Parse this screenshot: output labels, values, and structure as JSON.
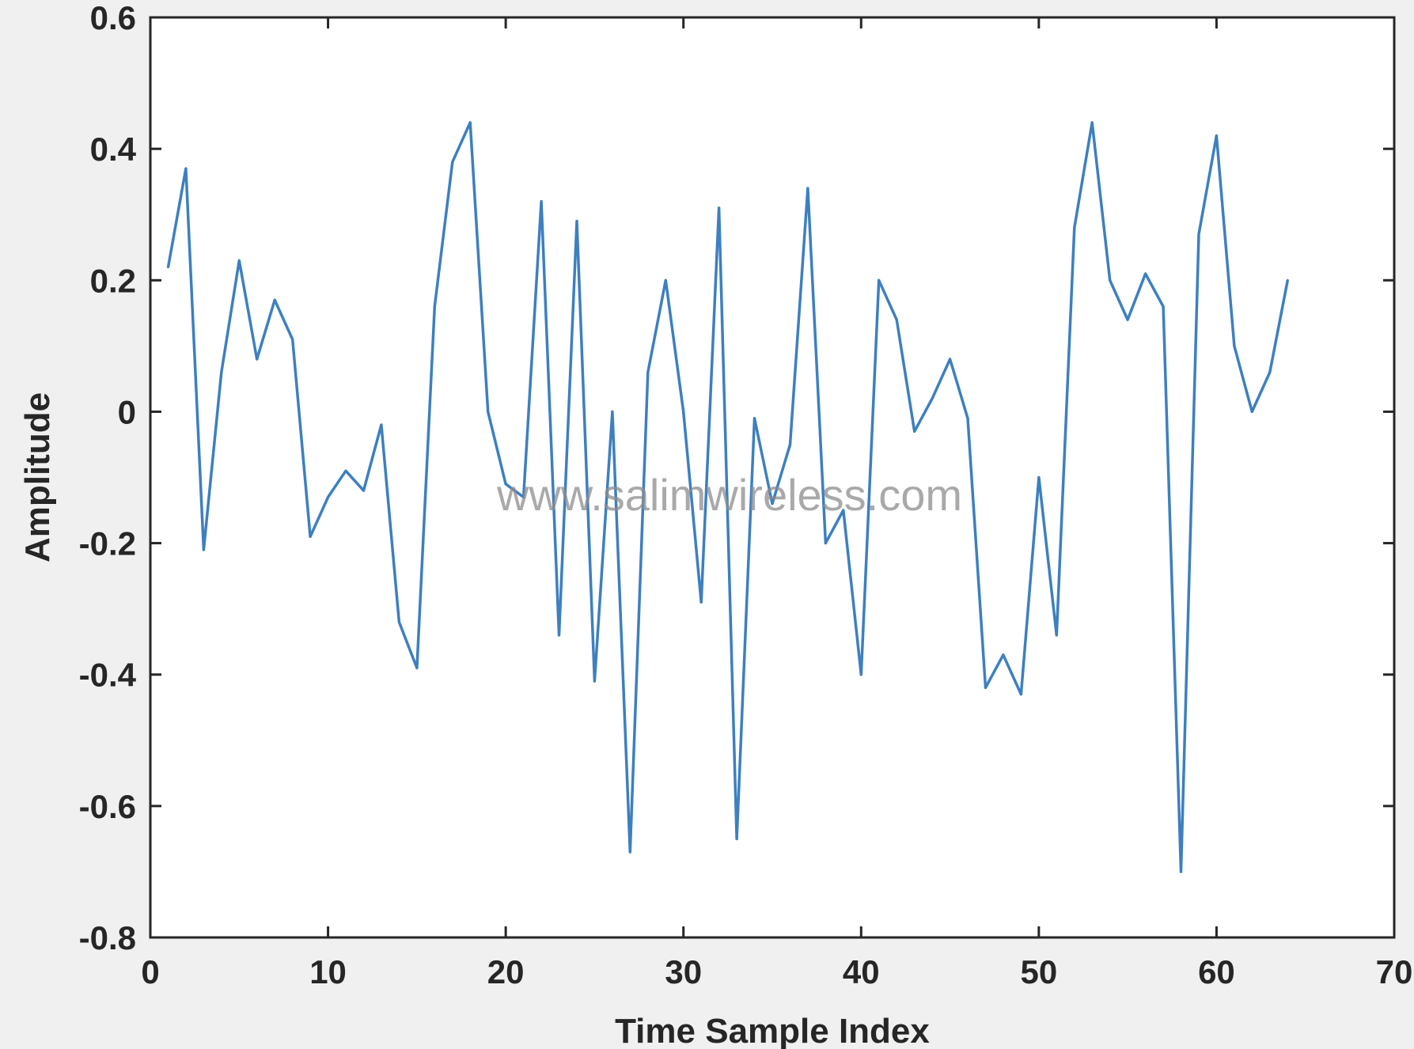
{
  "chart_data": {
    "type": "line",
    "title": "",
    "xlabel": "Time Sample Index",
    "ylabel": "Amplitude",
    "xlim": [
      0,
      70
    ],
    "ylim": [
      -0.8,
      0.6
    ],
    "xticks": [
      0,
      10,
      20,
      30,
      40,
      50,
      60,
      70
    ],
    "yticks": [
      -0.8,
      -0.6,
      -0.4,
      -0.2,
      0,
      0.2,
      0.4,
      0.6
    ],
    "xtick_labels": [
      "0",
      "10",
      "20",
      "30",
      "40",
      "50",
      "60",
      "70"
    ],
    "ytick_labels": [
      "-0.8",
      "-0.6",
      "-0.4",
      "-0.2",
      "0",
      "0.2",
      "0.4",
      "0.6"
    ],
    "grid": false,
    "legend": "none",
    "watermark": "www.salimwireless.com",
    "series": [
      {
        "color": "#3d7fc1",
        "x": [
          1,
          2,
          3,
          4,
          5,
          6,
          7,
          8,
          9,
          10,
          11,
          12,
          13,
          14,
          15,
          16,
          17,
          18,
          19,
          20,
          21,
          22,
          23,
          24,
          25,
          26,
          27,
          28,
          29,
          30,
          31,
          32,
          33,
          34,
          35,
          36,
          37,
          38,
          39,
          40,
          41,
          42,
          43,
          44,
          45,
          46,
          47,
          48,
          49,
          50,
          51,
          52,
          53,
          54,
          55,
          56,
          57,
          58,
          59,
          60,
          61,
          62,
          63,
          64
        ],
        "y": [
          0.22,
          0.37,
          -0.21,
          0.06,
          0.23,
          0.08,
          0.17,
          0.11,
          -0.19,
          -0.13,
          -0.09,
          -0.12,
          -0.02,
          -0.32,
          -0.39,
          0.16,
          0.38,
          0.44,
          0.0,
          -0.11,
          -0.13,
          0.32,
          -0.34,
          0.29,
          -0.41,
          0.0,
          -0.67,
          0.06,
          0.2,
          0.0,
          -0.29,
          0.31,
          -0.65,
          -0.01,
          -0.14,
          -0.05,
          0.34,
          -0.2,
          -0.15,
          -0.4,
          0.2,
          0.14,
          -0.03,
          0.02,
          0.08,
          -0.01,
          -0.42,
          -0.37,
          -0.43,
          -0.1,
          -0.34,
          0.28,
          0.44,
          0.2,
          0.14,
          0.21,
          0.16,
          -0.7,
          0.27,
          0.42,
          0.1,
          0.0,
          0.06,
          0.2
        ]
      }
    ]
  }
}
